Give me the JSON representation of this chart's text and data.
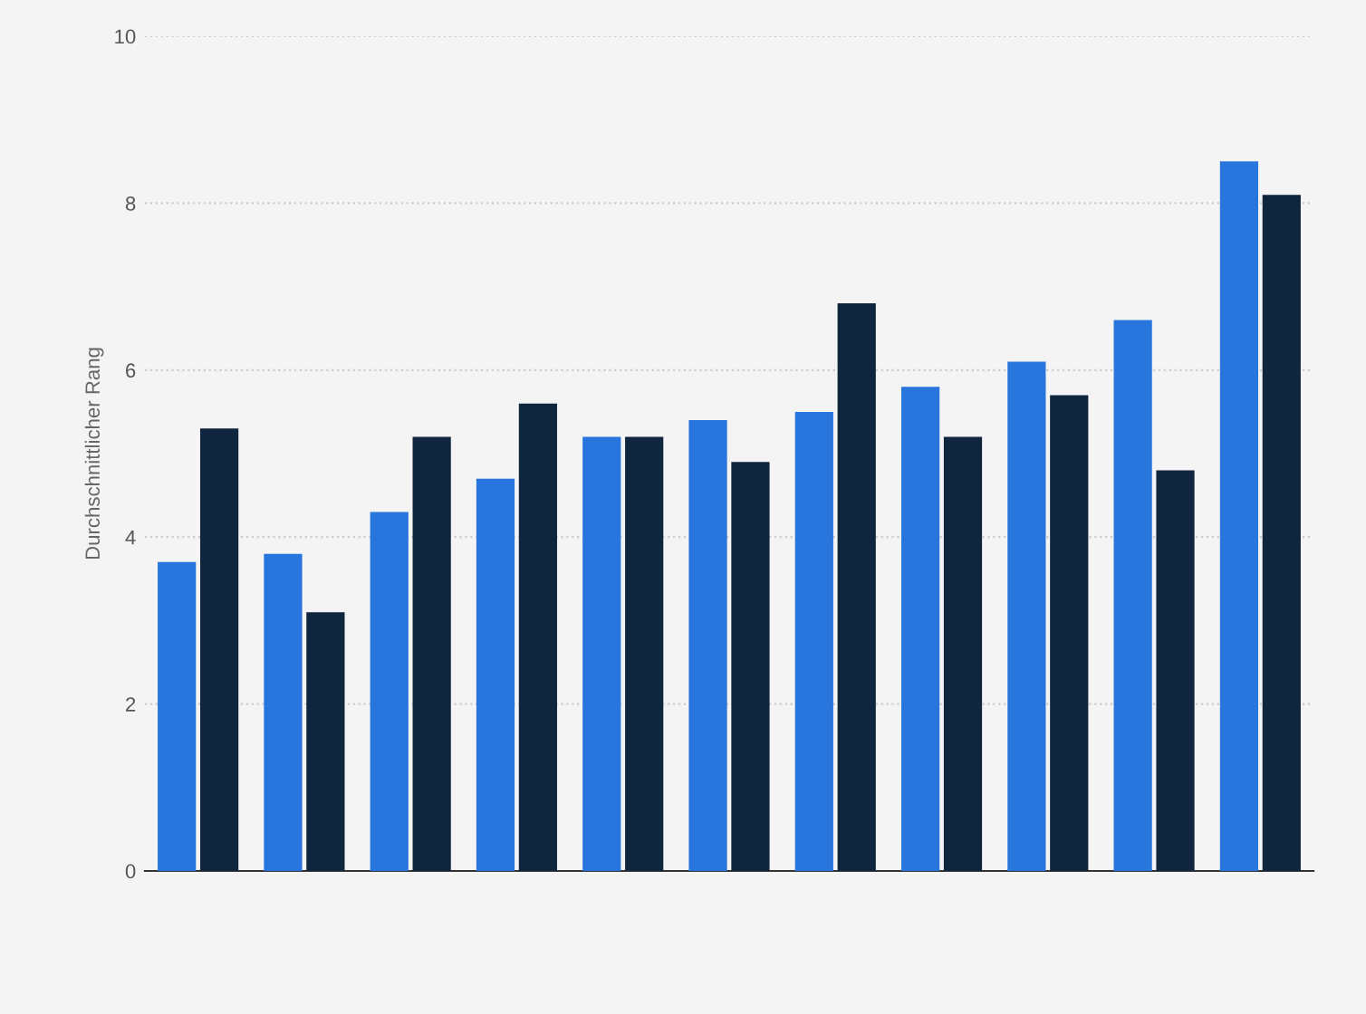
{
  "chart_data": {
    "type": "bar",
    "ylabel": "Durchschnittlicher Rang",
    "categories": [
      null,
      null,
      null,
      null,
      null,
      null,
      null,
      null,
      null,
      null,
      null
    ],
    "series": [
      {
        "color": "#2876dd",
        "values": [
          3.7,
          3.8,
          4.3,
          4.7,
          5.2,
          5.4,
          5.5,
          5.8,
          6.1,
          6.6,
          8.5
        ]
      },
      {
        "color": "#10263e",
        "values": [
          5.3,
          3.1,
          5.2,
          5.6,
          5.2,
          4.9,
          6.8,
          5.2,
          5.7,
          4.8,
          8.1
        ]
      }
    ],
    "ylim": [
      0,
      10
    ],
    "yticks": [
      0,
      2,
      4,
      6,
      8,
      10
    ],
    "grid": "y"
  }
}
